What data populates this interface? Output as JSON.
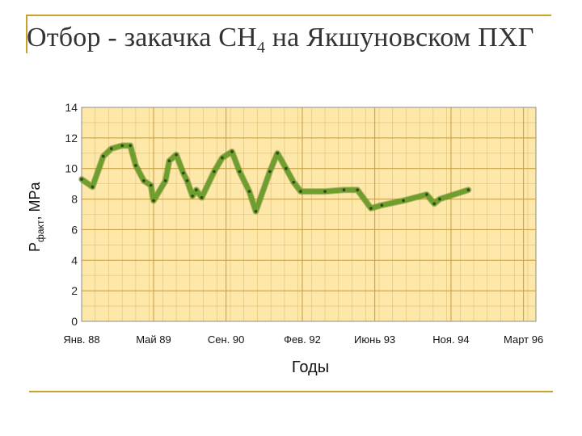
{
  "slide": {
    "title_prefix": "Отбор - закачка ",
    "title_formula_base": "CH",
    "title_formula_sub": "4",
    "title_suffix": " на Якшуновском ПХГ",
    "accent_color": "#c9a227"
  },
  "chart_data": {
    "type": "line",
    "title": "",
    "xlabel": "Годы",
    "ylabel_base": "P",
    "ylabel_sub": "факт",
    "ylabel_unit": ", MPa",
    "ylim": [
      0,
      14
    ],
    "yticks": [
      0,
      2,
      4,
      6,
      8,
      10,
      12,
      14
    ],
    "xlim": [
      1988.0,
      1996.4
    ],
    "xticks": [
      {
        "label": "Янв. 88",
        "value": 1988.0
      },
      {
        "label": "Май 89",
        "value": 1989.33
      },
      {
        "label": "Сен. 90",
        "value": 1990.67
      },
      {
        "label": "Фев. 92",
        "value": 1992.08
      },
      {
        "label": "Июнь 93",
        "value": 1993.42
      },
      {
        "label": "Ноя. 94",
        "value": 1994.83
      },
      {
        "label": "Март 96",
        "value": 1996.17
      }
    ],
    "grid": true,
    "plot_background": "#fde7a9",
    "grid_color": "#c9a24a",
    "line_color": "#6e9e2c",
    "series": [
      {
        "x": [
          1988.0,
          1988.2,
          1988.4,
          1988.55,
          1988.75,
          1988.9,
          1989.0,
          1989.15,
          1989.28,
          1989.33,
          1989.55,
          1989.62,
          1989.75,
          1989.88,
          1989.95,
          1990.05,
          1990.12,
          1990.22,
          1990.45,
          1990.6,
          1990.78,
          1990.92,
          1991.1,
          1991.22,
          1991.48,
          1991.62,
          1991.78,
          1991.92,
          1992.05,
          1992.5,
          1992.85,
          1993.1,
          1993.35,
          1993.55,
          1993.95,
          1994.38,
          1994.52,
          1994.62,
          1995.15
        ],
        "y": [
          9.3,
          8.8,
          10.8,
          11.3,
          11.5,
          11.5,
          10.2,
          9.2,
          8.9,
          7.9,
          9.2,
          10.5,
          10.9,
          9.7,
          9.2,
          8.2,
          8.6,
          8.1,
          9.8,
          10.7,
          11.1,
          9.8,
          8.5,
          7.2,
          9.8,
          11.0,
          10.0,
          9.1,
          8.5,
          8.5,
          8.6,
          8.6,
          7.4,
          7.6,
          7.9,
          8.3,
          7.7,
          8.0,
          8.6
        ]
      }
    ]
  }
}
